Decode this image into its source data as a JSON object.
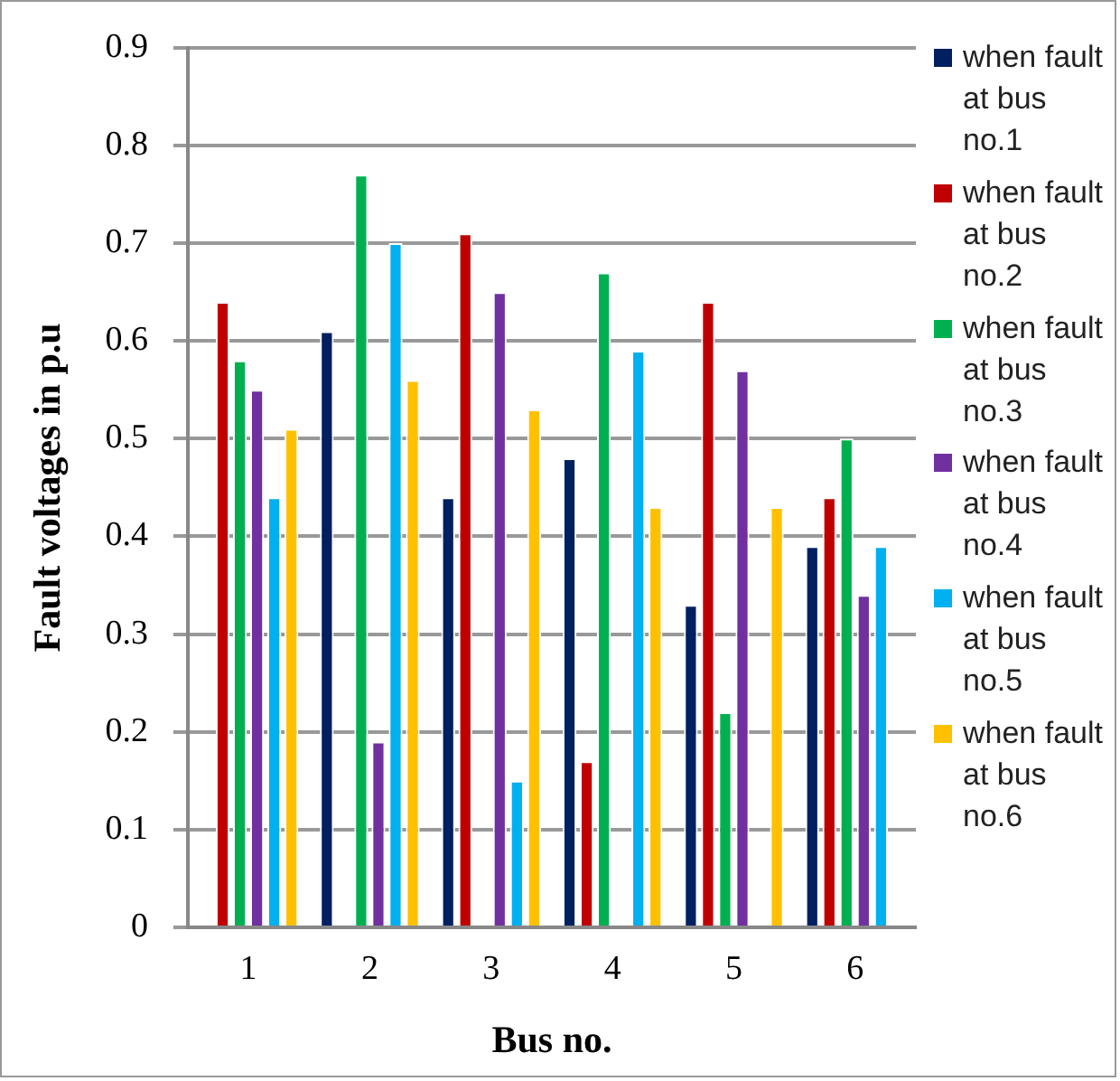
{
  "chart_data": {
    "type": "bar",
    "xlabel": "Bus no.",
    "ylabel": "Fault voltages in p.u",
    "categories": [
      "1",
      "2",
      "3",
      "4",
      "5",
      "6"
    ],
    "series": [
      {
        "name": "when fault at bus no.1",
        "color": "#002060",
        "values": [
          0,
          0.61,
          0.44,
          0.48,
          0.33,
          0.39
        ]
      },
      {
        "name": "when fault at bus no.2",
        "color": "#c00000",
        "values": [
          0.64,
          0,
          0.71,
          0.17,
          0.64,
          0.44
        ]
      },
      {
        "name": "when fault at bus no.3",
        "color": "#00b050",
        "values": [
          0.58,
          0.77,
          0,
          0.67,
          0.22,
          0.5
        ]
      },
      {
        "name": "when fault at bus no.4",
        "color": "#7030a0",
        "values": [
          0.55,
          0.19,
          0.65,
          0,
          0.57,
          0.34
        ]
      },
      {
        "name": "when fault at bus no.5",
        "color": "#00b0f0",
        "values": [
          0.44,
          0.7,
          0.15,
          0.59,
          0,
          0.39
        ]
      },
      {
        "name": "when fault at bus no.6",
        "color": "#ffc000",
        "values": [
          0.51,
          0.56,
          0.53,
          0.43,
          0.43,
          0
        ]
      }
    ],
    "ylim": [
      0,
      0.9
    ],
    "yticks": [
      0,
      0.1,
      0.2,
      0.3,
      0.4,
      0.5,
      0.6,
      0.7,
      0.8,
      0.9
    ],
    "grid": "y",
    "legend": "right"
  }
}
